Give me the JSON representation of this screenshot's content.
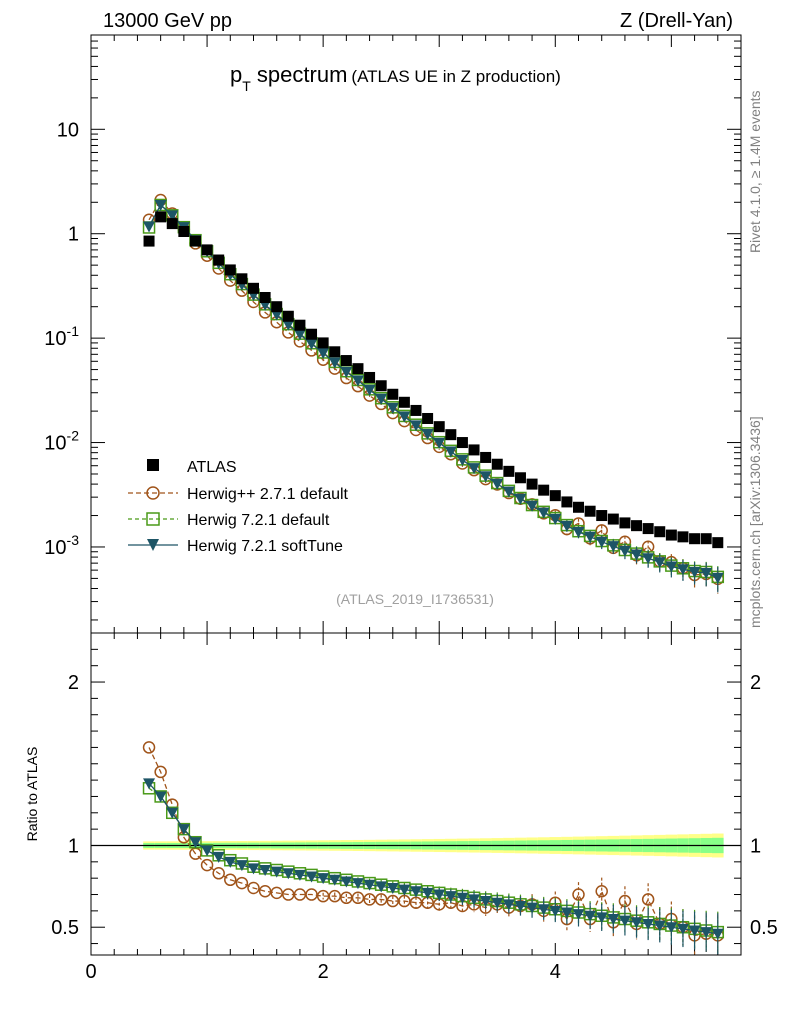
{
  "header": {
    "energy": "13000 GeV pp",
    "process": "Z (Drell-Yan)",
    "rivet": "Rivet 4.1.0, ≥ 1.4M events",
    "source": "mcplots.cern.ch [arXiv:1306.3436]",
    "analysis": "(ATLAS_2019_I1736531)"
  },
  "title": {
    "main": "p",
    "sub": "T",
    "rest": " spectrum",
    "small": "(ATLAS UE in Z production)"
  },
  "ratio_ylabel": "Ratio to ATLAS",
  "colors": {
    "atlas": "#000000",
    "hpp": "#a0541a",
    "h721": "#4a9a18",
    "soft": "#1d5566",
    "band_outer": "#ffff88",
    "band_inner": "#88ff88"
  },
  "chart_data": {
    "type": "scatter",
    "xlim": [
      0,
      5.6
    ],
    "main_ylim": [
      0.00015,
      80
    ],
    "ratio_ylim": [
      0.33,
      2.3
    ],
    "log_y": true,
    "x_ticks": [
      "0",
      "2",
      "4"
    ],
    "main_yticks": [
      "10",
      "1",
      "10^-1",
      "10^-2",
      "10^-3"
    ],
    "ratio_yticks": [
      "2",
      "1",
      "0.5"
    ],
    "x": [
      0.5,
      0.6,
      0.7,
      0.8,
      0.9,
      1.0,
      1.1,
      1.2,
      1.3,
      1.4,
      1.5,
      1.6,
      1.7,
      1.8,
      1.9,
      2.0,
      2.1,
      2.2,
      2.3,
      2.4,
      2.5,
      2.6,
      2.7,
      2.8,
      2.9,
      3.0,
      3.1,
      3.2,
      3.3,
      3.4,
      3.5,
      3.6,
      3.7,
      3.8,
      3.9,
      4.0,
      4.1,
      4.2,
      4.3,
      4.4,
      4.5,
      4.6,
      4.7,
      4.8,
      4.9,
      5.0,
      5.1,
      5.2,
      5.3,
      5.4
    ],
    "series": [
      {
        "name": "ATLAS",
        "values": [
          0.85,
          1.45,
          1.25,
          1.05,
          0.85,
          0.7,
          0.56,
          0.45,
          0.37,
          0.3,
          0.245,
          0.2,
          0.162,
          0.133,
          0.109,
          0.09,
          0.074,
          0.061,
          0.051,
          0.042,
          0.035,
          0.029,
          0.0243,
          0.0203,
          0.017,
          0.0142,
          0.0119,
          0.01,
          0.0085,
          0.0072,
          0.0062,
          0.0053,
          0.0046,
          0.004,
          0.0035,
          0.0031,
          0.0027,
          0.0024,
          0.0022,
          0.002,
          0.00185,
          0.0017,
          0.0016,
          0.0015,
          0.0014,
          0.0013,
          0.00125,
          0.0012,
          0.0012,
          0.0011
        ]
      },
      {
        "name": "Herwig++ 2.7.1 default",
        "ratio": [
          1.6,
          1.45,
          1.25,
          1.05,
          0.95,
          0.88,
          0.83,
          0.79,
          0.77,
          0.74,
          0.72,
          0.71,
          0.7,
          0.7,
          0.7,
          0.69,
          0.69,
          0.68,
          0.68,
          0.67,
          0.67,
          0.66,
          0.66,
          0.65,
          0.65,
          0.64,
          0.65,
          0.63,
          0.64,
          0.62,
          0.64,
          0.62,
          0.63,
          0.64,
          0.6,
          0.65,
          0.55,
          0.7,
          0.55,
          0.72,
          0.53,
          0.66,
          0.52,
          0.67,
          0.52,
          0.55,
          0.5,
          0.45,
          0.46,
          0.45
        ]
      },
      {
        "name": "Herwig 7.2.1 default",
        "ratio": [
          1.35,
          1.3,
          1.2,
          1.1,
          1.02,
          0.97,
          0.94,
          0.91,
          0.89,
          0.87,
          0.86,
          0.85,
          0.84,
          0.83,
          0.82,
          0.81,
          0.8,
          0.79,
          0.78,
          0.77,
          0.76,
          0.75,
          0.74,
          0.73,
          0.72,
          0.71,
          0.7,
          0.69,
          0.68,
          0.67,
          0.66,
          0.65,
          0.64,
          0.63,
          0.62,
          0.61,
          0.6,
          0.59,
          0.58,
          0.57,
          0.56,
          0.55,
          0.54,
          0.53,
          0.52,
          0.51,
          0.5,
          0.49,
          0.48,
          0.47
        ]
      },
      {
        "name": "Herwig 7.2.1 softTune",
        "ratio": [
          1.38,
          1.3,
          1.2,
          1.1,
          1.02,
          0.97,
          0.93,
          0.9,
          0.88,
          0.86,
          0.85,
          0.84,
          0.83,
          0.82,
          0.81,
          0.8,
          0.79,
          0.78,
          0.77,
          0.76,
          0.75,
          0.74,
          0.73,
          0.72,
          0.71,
          0.7,
          0.69,
          0.68,
          0.67,
          0.66,
          0.65,
          0.64,
          0.63,
          0.62,
          0.61,
          0.6,
          0.59,
          0.58,
          0.57,
          0.56,
          0.55,
          0.54,
          0.53,
          0.52,
          0.51,
          0.5,
          0.49,
          0.48,
          0.47,
          0.46
        ]
      }
    ]
  }
}
